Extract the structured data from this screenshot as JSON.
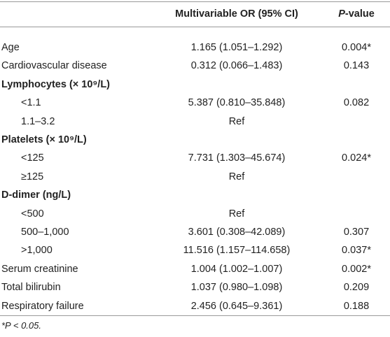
{
  "header": [
    "Multivariable OR (95% CI)",
    [
      "P",
      "-value"
    ]
  ],
  "rows": [
    {
      "label": "Age",
      "or": "1.165 (1.051–1.292)",
      "p": "0.004*"
    },
    {
      "label": "Cardiovascular disease",
      "or": "0.312 (0.066–1.483)",
      "p": "0.143"
    },
    {
      "heading": "Lymphocytes (× 10⁹/L)",
      "rows": [
        {
          "label": "<1.1",
          "or": "5.387 (0.810–35.848)",
          "p": "0.082"
        },
        {
          "label": "1.1–3.2",
          "or": "Ref"
        }
      ]
    },
    {
      "heading": "Platelets (× 10⁹/L)",
      "rows": [
        {
          "label": "<125",
          "or": "7.731 (1.303–45.674)",
          "p": "0.024*"
        },
        {
          "label": "≥125",
          "or": "Ref"
        }
      ]
    },
    {
      "heading": "D-dimer (ng/L)",
      "rows": [
        {
          "label": "<500",
          "or": "Ref"
        },
        {
          "label": "500–1,000",
          "or": "3.601 (0.308–42.089)",
          "p": "0.307"
        },
        {
          "label": ">1,000",
          "or": "11.516 (1.157–114.658)",
          "p": "0.037*"
        }
      ]
    },
    {
      "label": "Serum creatinine",
      "or": "1.004 (1.002–1.007)",
      "p": "0.002*"
    },
    {
      "label": "Total bilirubin",
      "or": "1.037 (0.980–1.098)",
      "p": "0.209"
    },
    {
      "label": "Respiratory failure",
      "or": "2.456 (0.645–9.361)",
      "p": "0.188"
    }
  ],
  "footnote": "*P < 0.05."
}
